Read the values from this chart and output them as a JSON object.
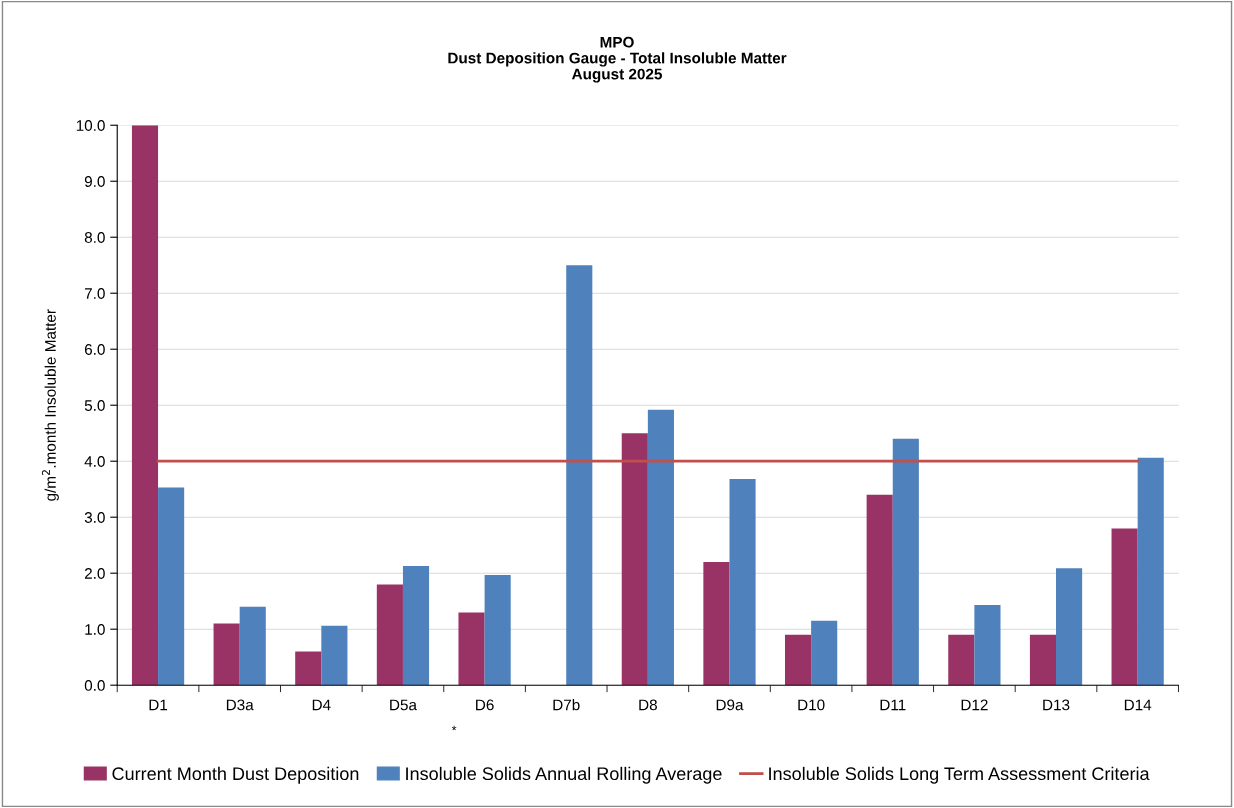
{
  "chart_data": {
    "type": "bar",
    "title": "MPO\nDust Deposition Gauge - Total Insoluble Matter\nAugust 2025",
    "ylabel": "g/m$^{2}$.month Insoluble Matter",
    "categories": [
      "D1",
      "D3a",
      "D4",
      "D5a",
      "D6",
      "D7b",
      "D8",
      "D9a",
      "D10",
      "D11",
      "D12",
      "D13",
      "D14"
    ],
    "series": [
      {
        "name": "Current Month Dust Deposition",
        "color": "#993366",
        "values": [
          10.0,
          1.1,
          0.6,
          1.8,
          1.3,
          null,
          4.5,
          2.2,
          0.9,
          3.4,
          0.9,
          0.9,
          2.8
        ]
      },
      {
        "name": "Insoluble Solids Annual Rolling Average",
        "color": "#4f81bd",
        "values": [
          3.53,
          1.4,
          1.06,
          2.13,
          1.97,
          7.5,
          4.92,
          3.68,
          1.15,
          4.4,
          1.43,
          2.09,
          4.06
        ]
      }
    ],
    "ref_lines": [
      {
        "axis": "y",
        "value": 4.0,
        "label": "Insoluble Solids Long Term Assessment Criteria",
        "color": "#c0504d"
      }
    ],
    "ylim": [
      0,
      10
    ],
    "yticks": [
      {
        "value": 0,
        "label": "0.0"
      },
      {
        "value": 1,
        "label": "1.0"
      },
      {
        "value": 2,
        "label": "2.0"
      },
      {
        "value": 3,
        "label": "3.0"
      },
      {
        "value": 4,
        "label": "4.0"
      },
      {
        "value": 5,
        "label": "5.0"
      },
      {
        "value": 6,
        "label": "6.0"
      },
      {
        "value": 7,
        "label": "7.0"
      },
      {
        "value": 8,
        "label": "8.0"
      },
      {
        "value": 9,
        "label": "9.0"
      },
      {
        "value": 10,
        "label": "10.0"
      }
    ],
    "grid": "y",
    "legend": "bottom",
    "annotations": [
      "*"
    ]
  }
}
